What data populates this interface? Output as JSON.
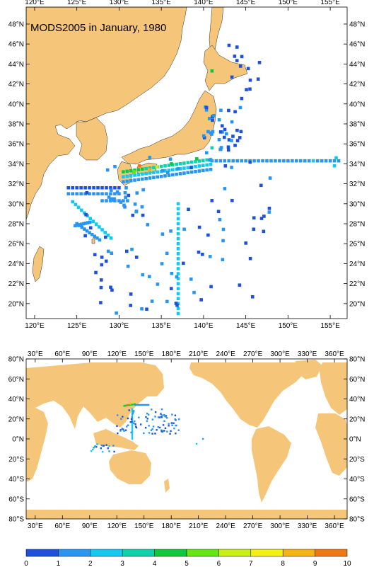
{
  "figure": {
    "title": "MODS2005 in January, 1980"
  },
  "regional_map": {
    "lon_range": [
      119,
      157
    ],
    "lat_range": [
      18.5,
      49.7
    ],
    "lon_ticks": [
      "120°E",
      "125°E",
      "130°E",
      "135°E",
      "140°E",
      "145°E",
      "150°E",
      "155°E"
    ],
    "lon_tick_values": [
      120,
      125,
      130,
      135,
      140,
      145,
      150,
      155
    ],
    "lat_ticks": [
      "20°N",
      "22°N",
      "24°N",
      "26°N",
      "28°N",
      "30°N",
      "32°N",
      "34°N",
      "36°N",
      "38°N",
      "40°N",
      "42°N",
      "44°N",
      "46°N",
      "48°N"
    ],
    "lat_tick_values": [
      20,
      22,
      24,
      26,
      28,
      30,
      32,
      34,
      36,
      38,
      40,
      42,
      44,
      46,
      48
    ]
  },
  "global_map": {
    "lon_range": [
      20,
      374
    ],
    "lat_range": [
      -80,
      80
    ],
    "lon_ticks": [
      "30°E",
      "60°E",
      "90°E",
      "120°E",
      "150°E",
      "180°E",
      "210°E",
      "240°E",
      "270°E",
      "300°E",
      "330°E",
      "360°E"
    ],
    "lon_tick_values": [
      30,
      60,
      90,
      120,
      150,
      180,
      210,
      240,
      270,
      300,
      330,
      360
    ],
    "lat_ticks": [
      "80°S",
      "60°S",
      "40°S",
      "20°S",
      "0°N",
      "20°N",
      "40°N",
      "60°N",
      "80°N"
    ],
    "lat_tick_values": [
      -80,
      -60,
      -40,
      -20,
      0,
      20,
      40,
      60,
      80
    ]
  },
  "colorbar": {
    "labels": [
      "0",
      "1",
      "2",
      "3",
      "4",
      "5",
      "6",
      "7",
      "8",
      "9",
      "10"
    ],
    "colors": [
      "#1e50dc",
      "#2896f0",
      "#14c8f0",
      "#10d2aa",
      "#10c83c",
      "#64e614",
      "#c8f014",
      "#f5f014",
      "#f5b414",
      "#f07814"
    ]
  },
  "colors": {
    "land": "#f5c67a",
    "ocean": "#ffffff"
  }
}
